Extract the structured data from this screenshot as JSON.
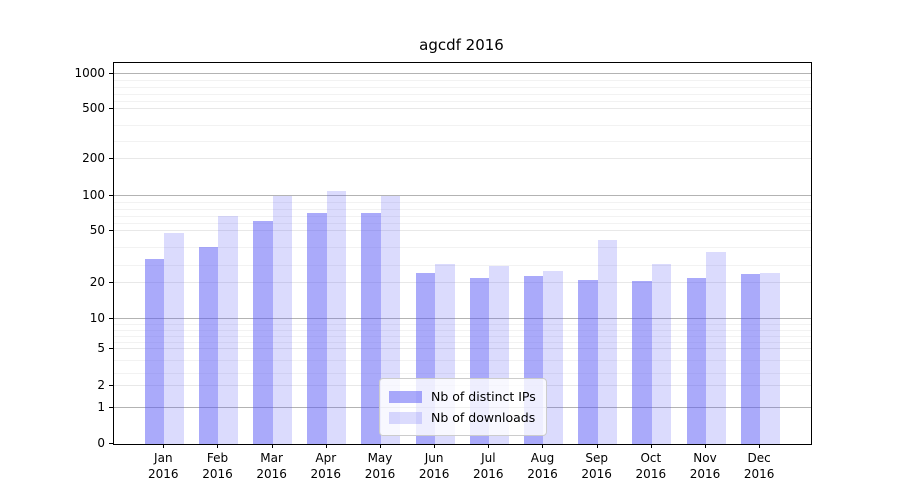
{
  "title": "agcdf 2016",
  "legend": {
    "items": [
      {
        "label": "Nb of distinct IPs",
        "series": "ips"
      },
      {
        "label": "Nb of downloads",
        "series": "downloads"
      }
    ]
  },
  "colors": {
    "bar_distinct_ips": "#aaaaf8",
    "bar_downloads": "#dcdcfa",
    "grid_major": "#b3b3b3",
    "grid_minor": "#e8e8e8"
  },
  "chart_data": {
    "type": "bar",
    "title": "agcdf 2016",
    "categories": [
      "Jan",
      "Feb",
      "Mar",
      "Apr",
      "May",
      "Jun",
      "Jul",
      "Aug",
      "Sep",
      "Oct",
      "Nov",
      "Dec"
    ],
    "category_year": "2016",
    "series": [
      {
        "name": "Nb of distinct IPs",
        "values": [
          34,
          41,
          64,
          76,
          76,
          26,
          23,
          24,
          22,
          21,
          23,
          25
        ]
      },
      {
        "name": "Nb of downloads",
        "values": [
          49,
          71,
          100,
          113,
          100,
          31,
          30,
          27,
          45,
          31,
          38,
          26
        ]
      }
    ],
    "ylabel": "",
    "xlabel": "",
    "y_ticks": [
      0,
      1,
      2,
      5,
      10,
      20,
      50,
      100,
      200,
      500,
      1000
    ],
    "y_minor_ticks": [
      3,
      4,
      6,
      7,
      8,
      9,
      30,
      40,
      60,
      70,
      80,
      90,
      300,
      400,
      600,
      700,
      800,
      900
    ],
    "ylim": [
      0,
      1200
    ],
    "scale": "pseudo-log",
    "grid": true,
    "legend_position": "lower center"
  }
}
